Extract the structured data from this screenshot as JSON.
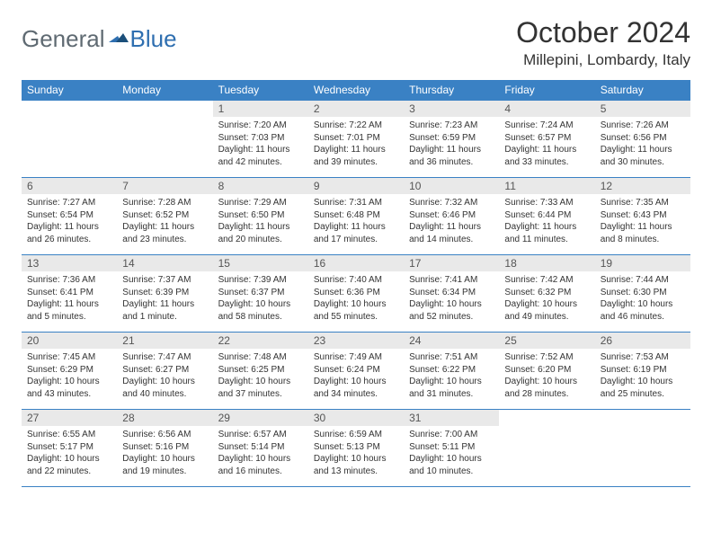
{
  "logo": {
    "general": "General",
    "blue": "Blue"
  },
  "title": "October 2024",
  "location": "Millepini, Lombardy, Italy",
  "colors": {
    "header_bg": "#3a81c4",
    "header_text": "#ffffff",
    "daynum_bg": "#e9e9e9",
    "daynum_text": "#555555",
    "body_text": "#333333",
    "logo_gray": "#5f6a72",
    "logo_blue": "#2f6fb0",
    "border": "#3a81c4"
  },
  "days_of_week": [
    "Sunday",
    "Monday",
    "Tuesday",
    "Wednesday",
    "Thursday",
    "Friday",
    "Saturday"
  ],
  "weeks": [
    [
      null,
      null,
      {
        "n": "1",
        "sr": "Sunrise: 7:20 AM",
        "ss": "Sunset: 7:03 PM",
        "dl": "Daylight: 11 hours and 42 minutes."
      },
      {
        "n": "2",
        "sr": "Sunrise: 7:22 AM",
        "ss": "Sunset: 7:01 PM",
        "dl": "Daylight: 11 hours and 39 minutes."
      },
      {
        "n": "3",
        "sr": "Sunrise: 7:23 AM",
        "ss": "Sunset: 6:59 PM",
        "dl": "Daylight: 11 hours and 36 minutes."
      },
      {
        "n": "4",
        "sr": "Sunrise: 7:24 AM",
        "ss": "Sunset: 6:57 PM",
        "dl": "Daylight: 11 hours and 33 minutes."
      },
      {
        "n": "5",
        "sr": "Sunrise: 7:26 AM",
        "ss": "Sunset: 6:56 PM",
        "dl": "Daylight: 11 hours and 30 minutes."
      }
    ],
    [
      {
        "n": "6",
        "sr": "Sunrise: 7:27 AM",
        "ss": "Sunset: 6:54 PM",
        "dl": "Daylight: 11 hours and 26 minutes."
      },
      {
        "n": "7",
        "sr": "Sunrise: 7:28 AM",
        "ss": "Sunset: 6:52 PM",
        "dl": "Daylight: 11 hours and 23 minutes."
      },
      {
        "n": "8",
        "sr": "Sunrise: 7:29 AM",
        "ss": "Sunset: 6:50 PM",
        "dl": "Daylight: 11 hours and 20 minutes."
      },
      {
        "n": "9",
        "sr": "Sunrise: 7:31 AM",
        "ss": "Sunset: 6:48 PM",
        "dl": "Daylight: 11 hours and 17 minutes."
      },
      {
        "n": "10",
        "sr": "Sunrise: 7:32 AM",
        "ss": "Sunset: 6:46 PM",
        "dl": "Daylight: 11 hours and 14 minutes."
      },
      {
        "n": "11",
        "sr": "Sunrise: 7:33 AM",
        "ss": "Sunset: 6:44 PM",
        "dl": "Daylight: 11 hours and 11 minutes."
      },
      {
        "n": "12",
        "sr": "Sunrise: 7:35 AM",
        "ss": "Sunset: 6:43 PM",
        "dl": "Daylight: 11 hours and 8 minutes."
      }
    ],
    [
      {
        "n": "13",
        "sr": "Sunrise: 7:36 AM",
        "ss": "Sunset: 6:41 PM",
        "dl": "Daylight: 11 hours and 5 minutes."
      },
      {
        "n": "14",
        "sr": "Sunrise: 7:37 AM",
        "ss": "Sunset: 6:39 PM",
        "dl": "Daylight: 11 hours and 1 minute."
      },
      {
        "n": "15",
        "sr": "Sunrise: 7:39 AM",
        "ss": "Sunset: 6:37 PM",
        "dl": "Daylight: 10 hours and 58 minutes."
      },
      {
        "n": "16",
        "sr": "Sunrise: 7:40 AM",
        "ss": "Sunset: 6:36 PM",
        "dl": "Daylight: 10 hours and 55 minutes."
      },
      {
        "n": "17",
        "sr": "Sunrise: 7:41 AM",
        "ss": "Sunset: 6:34 PM",
        "dl": "Daylight: 10 hours and 52 minutes."
      },
      {
        "n": "18",
        "sr": "Sunrise: 7:42 AM",
        "ss": "Sunset: 6:32 PM",
        "dl": "Daylight: 10 hours and 49 minutes."
      },
      {
        "n": "19",
        "sr": "Sunrise: 7:44 AM",
        "ss": "Sunset: 6:30 PM",
        "dl": "Daylight: 10 hours and 46 minutes."
      }
    ],
    [
      {
        "n": "20",
        "sr": "Sunrise: 7:45 AM",
        "ss": "Sunset: 6:29 PM",
        "dl": "Daylight: 10 hours and 43 minutes."
      },
      {
        "n": "21",
        "sr": "Sunrise: 7:47 AM",
        "ss": "Sunset: 6:27 PM",
        "dl": "Daylight: 10 hours and 40 minutes."
      },
      {
        "n": "22",
        "sr": "Sunrise: 7:48 AM",
        "ss": "Sunset: 6:25 PM",
        "dl": "Daylight: 10 hours and 37 minutes."
      },
      {
        "n": "23",
        "sr": "Sunrise: 7:49 AM",
        "ss": "Sunset: 6:24 PM",
        "dl": "Daylight: 10 hours and 34 minutes."
      },
      {
        "n": "24",
        "sr": "Sunrise: 7:51 AM",
        "ss": "Sunset: 6:22 PM",
        "dl": "Daylight: 10 hours and 31 minutes."
      },
      {
        "n": "25",
        "sr": "Sunrise: 7:52 AM",
        "ss": "Sunset: 6:20 PM",
        "dl": "Daylight: 10 hours and 28 minutes."
      },
      {
        "n": "26",
        "sr": "Sunrise: 7:53 AM",
        "ss": "Sunset: 6:19 PM",
        "dl": "Daylight: 10 hours and 25 minutes."
      }
    ],
    [
      {
        "n": "27",
        "sr": "Sunrise: 6:55 AM",
        "ss": "Sunset: 5:17 PM",
        "dl": "Daylight: 10 hours and 22 minutes."
      },
      {
        "n": "28",
        "sr": "Sunrise: 6:56 AM",
        "ss": "Sunset: 5:16 PM",
        "dl": "Daylight: 10 hours and 19 minutes."
      },
      {
        "n": "29",
        "sr": "Sunrise: 6:57 AM",
        "ss": "Sunset: 5:14 PM",
        "dl": "Daylight: 10 hours and 16 minutes."
      },
      {
        "n": "30",
        "sr": "Sunrise: 6:59 AM",
        "ss": "Sunset: 5:13 PM",
        "dl": "Daylight: 10 hours and 13 minutes."
      },
      {
        "n": "31",
        "sr": "Sunrise: 7:00 AM",
        "ss": "Sunset: 5:11 PM",
        "dl": "Daylight: 10 hours and 10 minutes."
      },
      null,
      null
    ]
  ]
}
